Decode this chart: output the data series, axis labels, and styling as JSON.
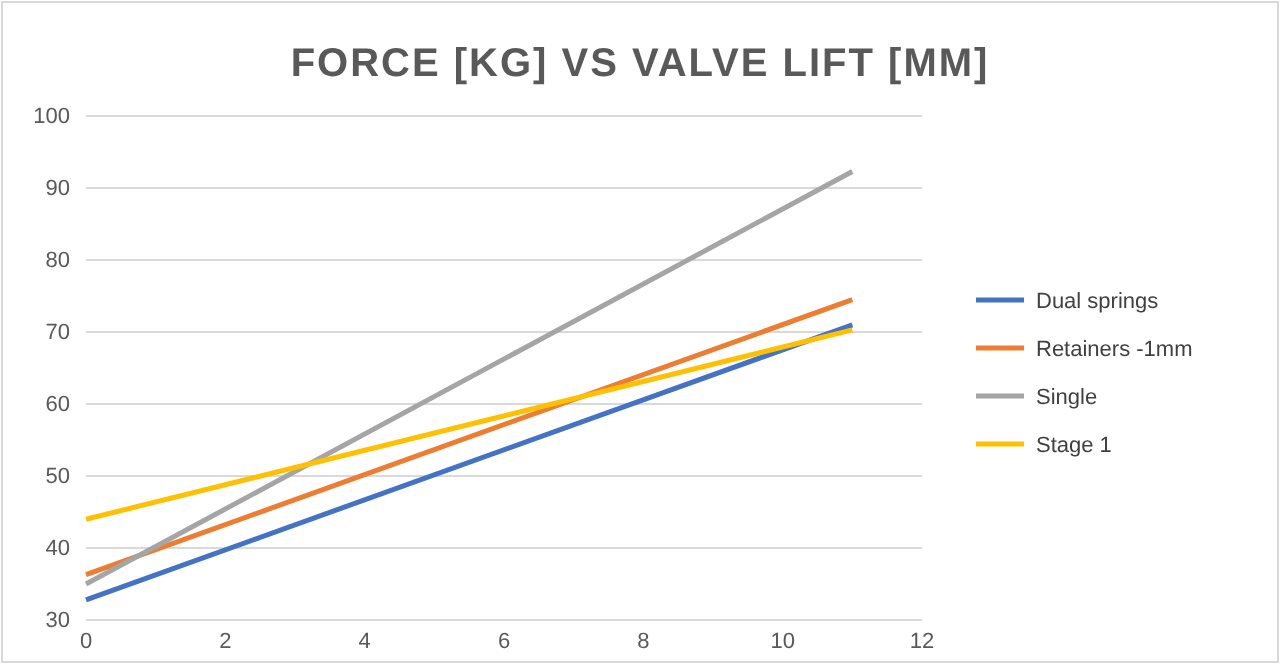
{
  "chart_data": {
    "type": "line",
    "title": "FORCE [KG] VS VALVE LIFT [MM]",
    "x": [
      0,
      11
    ],
    "series": [
      {
        "name": "Dual springs",
        "color": "#4472c4",
        "values": [
          32.8,
          71
        ]
      },
      {
        "name": "Retainers -1mm",
        "color": "#ed7d31",
        "values": [
          36.3,
          74.5
        ]
      },
      {
        "name": "Single",
        "color": "#a5a5a5",
        "values": [
          35,
          92.3
        ]
      },
      {
        "name": "Stage 1",
        "color": "#ffc000",
        "values": [
          44,
          70.3
        ]
      }
    ],
    "xlim": [
      0,
      12
    ],
    "xticks": [
      0,
      2,
      4,
      6,
      8,
      10,
      12
    ],
    "ylim": [
      30,
      100
    ],
    "yticks": [
      30,
      40,
      50,
      60,
      70,
      80,
      90,
      100
    ],
    "grid": "y",
    "legend": "right",
    "marker": "none",
    "line_style": "solid"
  }
}
